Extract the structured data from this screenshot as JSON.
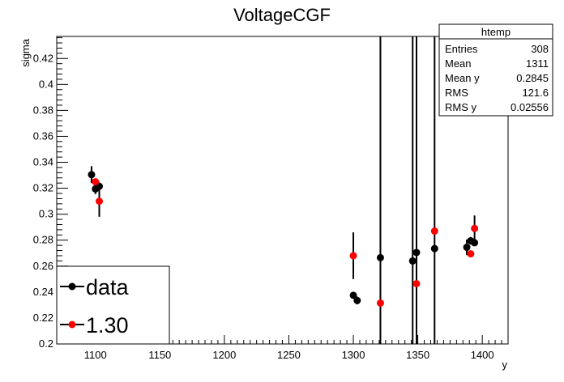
{
  "chart_data": {
    "type": "scatter",
    "title": "VoltageCGF",
    "xlabel": "y",
    "ylabel": "sigma",
    "xlim": [
      1070,
      1420
    ],
    "ylim": [
      0.2,
      0.437
    ],
    "x_ticks": [
      1100,
      1150,
      1200,
      1250,
      1300,
      1350,
      1400
    ],
    "y_ticks": [
      0.2,
      0.22,
      0.24,
      0.26,
      0.28,
      0.3,
      0.32,
      0.34,
      0.36,
      0.38,
      0.4,
      0.42
    ],
    "grid": false,
    "legend_position": "bottom-left",
    "series": [
      {
        "name": "data",
        "color": "#000000",
        "points": [
          {
            "x": 1097,
            "y": 0.3305,
            "err": 0.0065
          },
          {
            "x": 1100,
            "y": 0.3195,
            "err": 0.004
          },
          {
            "x": 1103,
            "y": 0.3215,
            "err": 0.003
          },
          {
            "x": 1300,
            "y": 0.2375,
            "err": 0.001
          },
          {
            "x": 1303,
            "y": 0.2335,
            "err": 0.003
          },
          {
            "x": 1321,
            "y": 0.2665,
            "err": 0.5
          },
          {
            "x": 1346,
            "y": 0.264,
            "err": 0.5
          },
          {
            "x": 1349,
            "y": 0.2705,
            "err": 0.5
          },
          {
            "x": 1363,
            "y": 0.2735,
            "err": 0.5
          },
          {
            "x": 1388,
            "y": 0.2745,
            "err": 0.006
          },
          {
            "x": 1391,
            "y": 0.2795,
            "err": 0.003
          },
          {
            "x": 1394,
            "y": 0.278,
            "err": 0.002
          }
        ]
      },
      {
        "name": "1.30",
        "color": "#ff0000",
        "points": [
          {
            "x": 1100,
            "y": 0.325,
            "err": 0
          },
          {
            "x": 1103,
            "y": 0.31,
            "err": 0.012
          },
          {
            "x": 1300,
            "y": 0.268,
            "err": 0.018
          },
          {
            "x": 1321,
            "y": 0.2315,
            "err": 0
          },
          {
            "x": 1349,
            "y": 0.2465,
            "err": 0
          },
          {
            "x": 1363,
            "y": 0.287,
            "err": 0
          },
          {
            "x": 1391,
            "y": 0.2695,
            "err": 0
          },
          {
            "x": 1394,
            "y": 0.289,
            "err": 0.01
          }
        ]
      }
    ],
    "legend": [
      {
        "label": "data",
        "color": "#000000"
      },
      {
        "label": "1.30",
        "color": "#ff0000"
      }
    ],
    "stats": {
      "title": "htemp",
      "rows": [
        {
          "label": "Entries",
          "value": "308"
        },
        {
          "label": "Mean",
          "value": "1311"
        },
        {
          "label": "Mean y",
          "value": "0.2845"
        },
        {
          "label": "RMS",
          "value": "121.6"
        },
        {
          "label": "RMS y",
          "value": "0.02556"
        }
      ]
    }
  }
}
